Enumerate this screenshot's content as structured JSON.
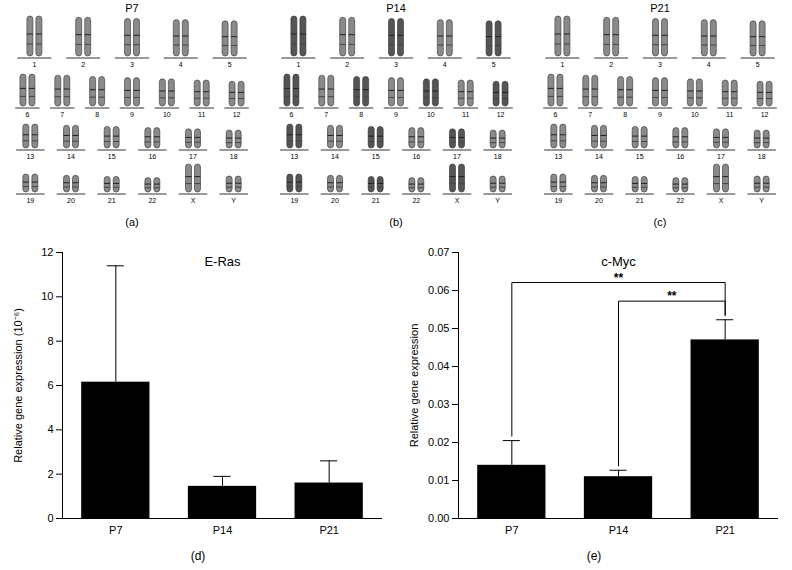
{
  "karyotypes": [
    {
      "title": "P7",
      "caption": "(a)",
      "rows": [
        [
          "1",
          "2",
          "3",
          "4",
          "5"
        ],
        [
          "6",
          "7",
          "8",
          "9",
          "10",
          "11",
          "12"
        ],
        [
          "13",
          "14",
          "15",
          "16",
          "17",
          "18"
        ],
        [
          "19",
          "20",
          "21",
          "22",
          "X",
          "Y"
        ]
      ]
    },
    {
      "title": "P14",
      "caption": "(b)",
      "rows": [
        [
          "1",
          "2",
          "3",
          "4",
          "5"
        ],
        [
          "6",
          "7",
          "8",
          "9",
          "10",
          "11",
          "12"
        ],
        [
          "13",
          "14",
          "15",
          "16",
          "17",
          "18"
        ],
        [
          "19",
          "20",
          "21",
          "22",
          "X",
          "Y"
        ]
      ]
    },
    {
      "title": "P21",
      "caption": "(c)",
      "rows": [
        [
          "1",
          "2",
          "3",
          "4",
          "5"
        ],
        [
          "6",
          "7",
          "8",
          "9",
          "10",
          "11",
          "12"
        ],
        [
          "13",
          "14",
          "15",
          "16",
          "17",
          "18"
        ],
        [
          "19",
          "20",
          "21",
          "22",
          "X",
          "Y"
        ]
      ]
    }
  ],
  "chart_data": [
    {
      "type": "bar",
      "title": "E-Ras",
      "caption": "(d)",
      "y_label": "Relative gene expression (10⁻⁶)",
      "categories": [
        "P7",
        "P14",
        "P21"
      ],
      "values": [
        6.15,
        1.45,
        1.6
      ],
      "errors": [
        5.25,
        0.45,
        1.0
      ],
      "color": "#000000",
      "ylim": [
        0,
        12
      ],
      "yticks": [
        0,
        2,
        4,
        6,
        8,
        10,
        12
      ],
      "grid": false
    },
    {
      "type": "bar",
      "title": "c-Myc",
      "caption": "(e)",
      "y_label": "Relative gene expression",
      "categories": [
        "P7",
        "P14",
        "P21"
      ],
      "values": [
        0.014,
        0.011,
        0.047
      ],
      "errors": [
        0.0065,
        0.0017,
        0.0053
      ],
      "color": "#000000",
      "ylim": [
        0,
        0.07
      ],
      "yticks": [
        {
          "value": 0,
          "label": "0.00"
        },
        {
          "value": 0.01,
          "label": "0.01"
        },
        {
          "value": 0.02,
          "label": "0.02"
        },
        {
          "value": 0.03,
          "label": "0.03"
        },
        {
          "value": 0.04,
          "label": "0.04"
        },
        {
          "value": 0.05,
          "label": "0.05"
        },
        {
          "value": 0.06,
          "label": "0.06"
        },
        {
          "value": 0.07,
          "label": "0.07"
        }
      ],
      "grid": false,
      "annotations": [
        {
          "text": "**",
          "from": "P7",
          "to": "P21"
        },
        {
          "text": "**",
          "from": "P14",
          "to": "P21"
        }
      ]
    }
  ]
}
